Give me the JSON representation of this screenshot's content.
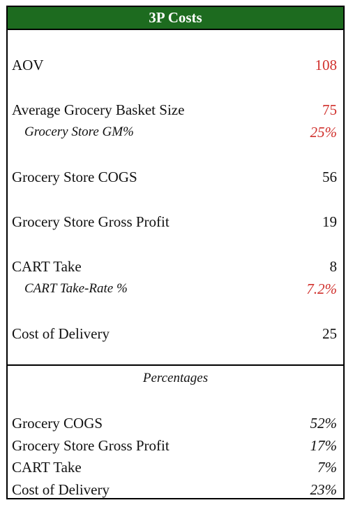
{
  "header": {
    "title": "3P Costs"
  },
  "rows": {
    "aov": {
      "label": "AOV",
      "value": "108"
    },
    "basket": {
      "label": "Average Grocery Basket Size",
      "value": "75"
    },
    "gm": {
      "label": "Grocery Store GM%",
      "value": "25%"
    },
    "cogs": {
      "label": "Grocery Store COGS",
      "value": "56"
    },
    "gross_profit": {
      "label": "Grocery Store Gross Profit",
      "value": "19"
    },
    "cart_take": {
      "label": "CART Take",
      "value": "8"
    },
    "take_rate": {
      "label": "CART Take-Rate %",
      "value": "7.2%"
    },
    "delivery": {
      "label": "Cost of Delivery",
      "value": "25"
    }
  },
  "percentages": {
    "title": "Percentages",
    "items": [
      {
        "label": "Grocery COGS",
        "value": "52%"
      },
      {
        "label": "Grocery Store Gross Profit",
        "value": "17%"
      },
      {
        "label": "CART Take",
        "value": "7%"
      },
      {
        "label": "Cost of Delivery",
        "value": "23%"
      }
    ]
  },
  "colors": {
    "header_bg": "#1d6b1f",
    "input_red": "#d0302c"
  }
}
